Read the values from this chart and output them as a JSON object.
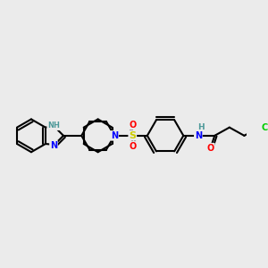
{
  "bg_color": "#ebebeb",
  "atom_colors": {
    "C": "#000000",
    "N": "#0000ff",
    "O": "#ff0000",
    "S": "#cccc00",
    "Cl": "#00cc00",
    "H": "#4d9999",
    "NH": "#4d9999"
  },
  "bond_color": "#000000",
  "figsize": [
    3.0,
    3.0
  ],
  "dpi": 100,
  "scale": 1.0
}
